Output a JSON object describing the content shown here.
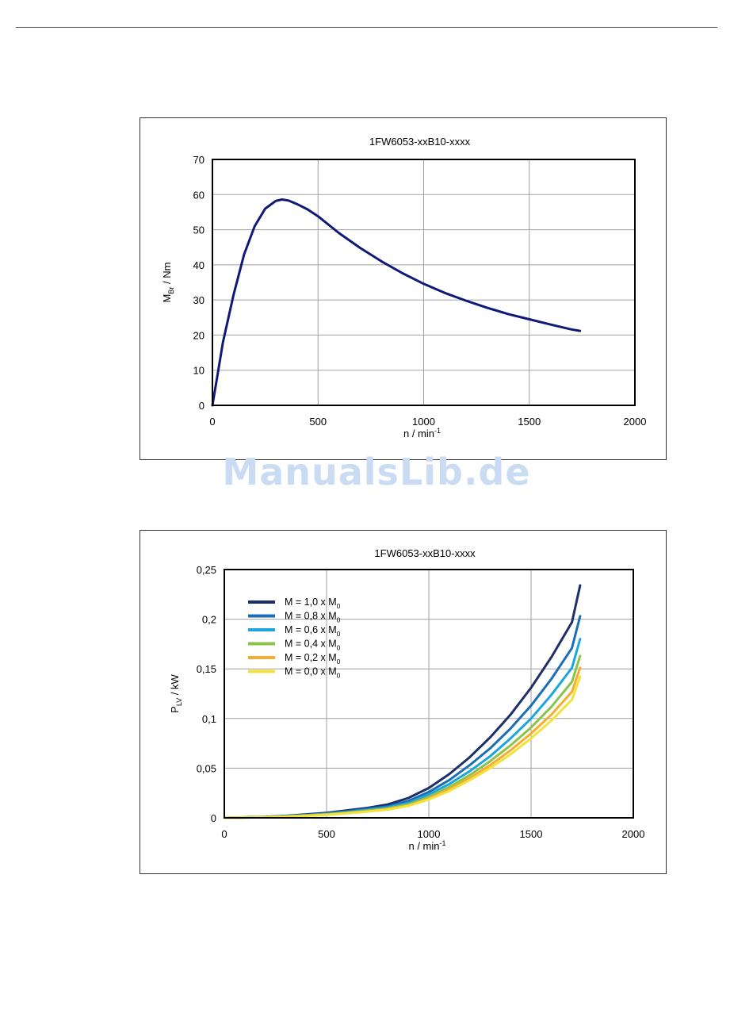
{
  "watermark": "ManualsLib.de",
  "chart_data": [
    {
      "type": "line",
      "title": "1FW6053-xxB10-xxxx",
      "xlabel": {
        "base": "n / min",
        "sup": "-1"
      },
      "ylabel": {
        "base": "M",
        "sub": "Br",
        "rest": " / Nm"
      },
      "xlim": [
        0,
        2000
      ],
      "ylim": [
        0,
        70
      ],
      "xticks": [
        0,
        500,
        1000,
        1500,
        2000
      ],
      "yticks": [
        0,
        10,
        20,
        30,
        40,
        50,
        60,
        70
      ],
      "xtick_labels": [
        "0",
        "500",
        "1000",
        "1500",
        "2000"
      ],
      "ytick_labels": [
        "0",
        "10",
        "20",
        "30",
        "40",
        "50",
        "60",
        "70"
      ],
      "grid": true,
      "series": [
        {
          "color": "#0f1a78",
          "x": [
            0,
            25,
            50,
            100,
            150,
            200,
            250,
            300,
            330,
            360,
            400,
            450,
            500,
            600,
            700,
            800,
            900,
            1000,
            1100,
            1200,
            1300,
            1400,
            1500,
            1600,
            1700,
            1740
          ],
          "y": [
            0,
            9,
            18,
            31.5,
            43,
            51,
            56,
            58.2,
            58.6,
            58.3,
            57.3,
            55.8,
            53.8,
            49.0,
            44.8,
            41.0,
            37.6,
            34.6,
            32.0,
            29.8,
            27.8,
            26.0,
            24.5,
            23.0,
            21.6,
            21.2
          ]
        }
      ]
    },
    {
      "type": "line",
      "title": "1FW6053-xxB10-xxxx",
      "xlabel": {
        "base": "n / min",
        "sup": "-1"
      },
      "ylabel": {
        "base": "P",
        "sub": "LV",
        "rest": " / kW"
      },
      "xlim": [
        0,
        2000
      ],
      "ylim": [
        0,
        0.25
      ],
      "xticks": [
        0,
        500,
        1000,
        1500,
        2000
      ],
      "yticks": [
        0,
        0.05,
        0.1,
        0.15,
        0.2,
        0.25
      ],
      "xtick_labels": [
        "0",
        "500",
        "1000",
        "1500",
        "2000"
      ],
      "ytick_labels": [
        "0",
        "0,05",
        "0,1",
        "0,15",
        "0,2",
        "0,25"
      ],
      "grid": true,
      "legend": "top-left",
      "x": [
        0,
        100,
        200,
        300,
        400,
        500,
        600,
        700,
        800,
        900,
        1000,
        1100,
        1200,
        1300,
        1400,
        1500,
        1600,
        1700,
        1740
      ],
      "series": [
        {
          "name": {
            "text": "M = 1,0 x M",
            "sub": "0"
          },
          "color": "#1c2f68",
          "values": [
            0,
            0.0005,
            0.001,
            0.002,
            0.0035,
            0.005,
            0.0075,
            0.01,
            0.0135,
            0.02,
            0.03,
            0.044,
            0.061,
            0.081,
            0.104,
            0.131,
            0.162,
            0.197,
            0.234
          ]
        },
        {
          "name": {
            "text": "M = 0,8 x M",
            "sub": "0"
          },
          "color": "#1b6db6",
          "values": [
            0,
            0.0004,
            0.0009,
            0.0018,
            0.003,
            0.0045,
            0.0065,
            0.009,
            0.0115,
            0.017,
            0.026,
            0.038,
            0.053,
            0.07,
            0.09,
            0.113,
            0.14,
            0.171,
            0.203
          ]
        },
        {
          "name": {
            "text": "M = 0,6 x M",
            "sub": "0"
          },
          "color": "#1aa6dc",
          "values": [
            0,
            0.0004,
            0.0008,
            0.0016,
            0.0027,
            0.004,
            0.0058,
            0.008,
            0.0105,
            0.015,
            0.0235,
            0.034,
            0.047,
            0.062,
            0.08,
            0.1,
            0.124,
            0.151,
            0.18
          ]
        },
        {
          "name": {
            "text": "M = 0,4 x M",
            "sub": "0"
          },
          "color": "#8bc34a",
          "values": [
            0,
            0.0003,
            0.0007,
            0.0014,
            0.0024,
            0.0036,
            0.0052,
            0.0072,
            0.0095,
            0.0135,
            0.021,
            0.031,
            0.043,
            0.057,
            0.073,
            0.091,
            0.112,
            0.137,
            0.163
          ]
        },
        {
          "name": {
            "text": "M = 0,2 x M",
            "sub": "0"
          },
          "color": "#f5ad2e",
          "values": [
            0,
            0.0003,
            0.0006,
            0.0013,
            0.0022,
            0.0033,
            0.0048,
            0.0067,
            0.0088,
            0.0125,
            0.0195,
            0.029,
            0.04,
            0.053,
            0.068,
            0.085,
            0.104,
            0.127,
            0.151
          ]
        },
        {
          "name": {
            "text": "M = 0,0 x M",
            "sub": "0"
          },
          "color": "#f3e23c",
          "values": [
            0,
            0.0003,
            0.0006,
            0.0012,
            0.002,
            0.003,
            0.0045,
            0.0063,
            0.0083,
            0.012,
            0.0185,
            0.027,
            0.038,
            0.05,
            0.064,
            0.08,
            0.098,
            0.119,
            0.142
          ]
        }
      ]
    }
  ]
}
